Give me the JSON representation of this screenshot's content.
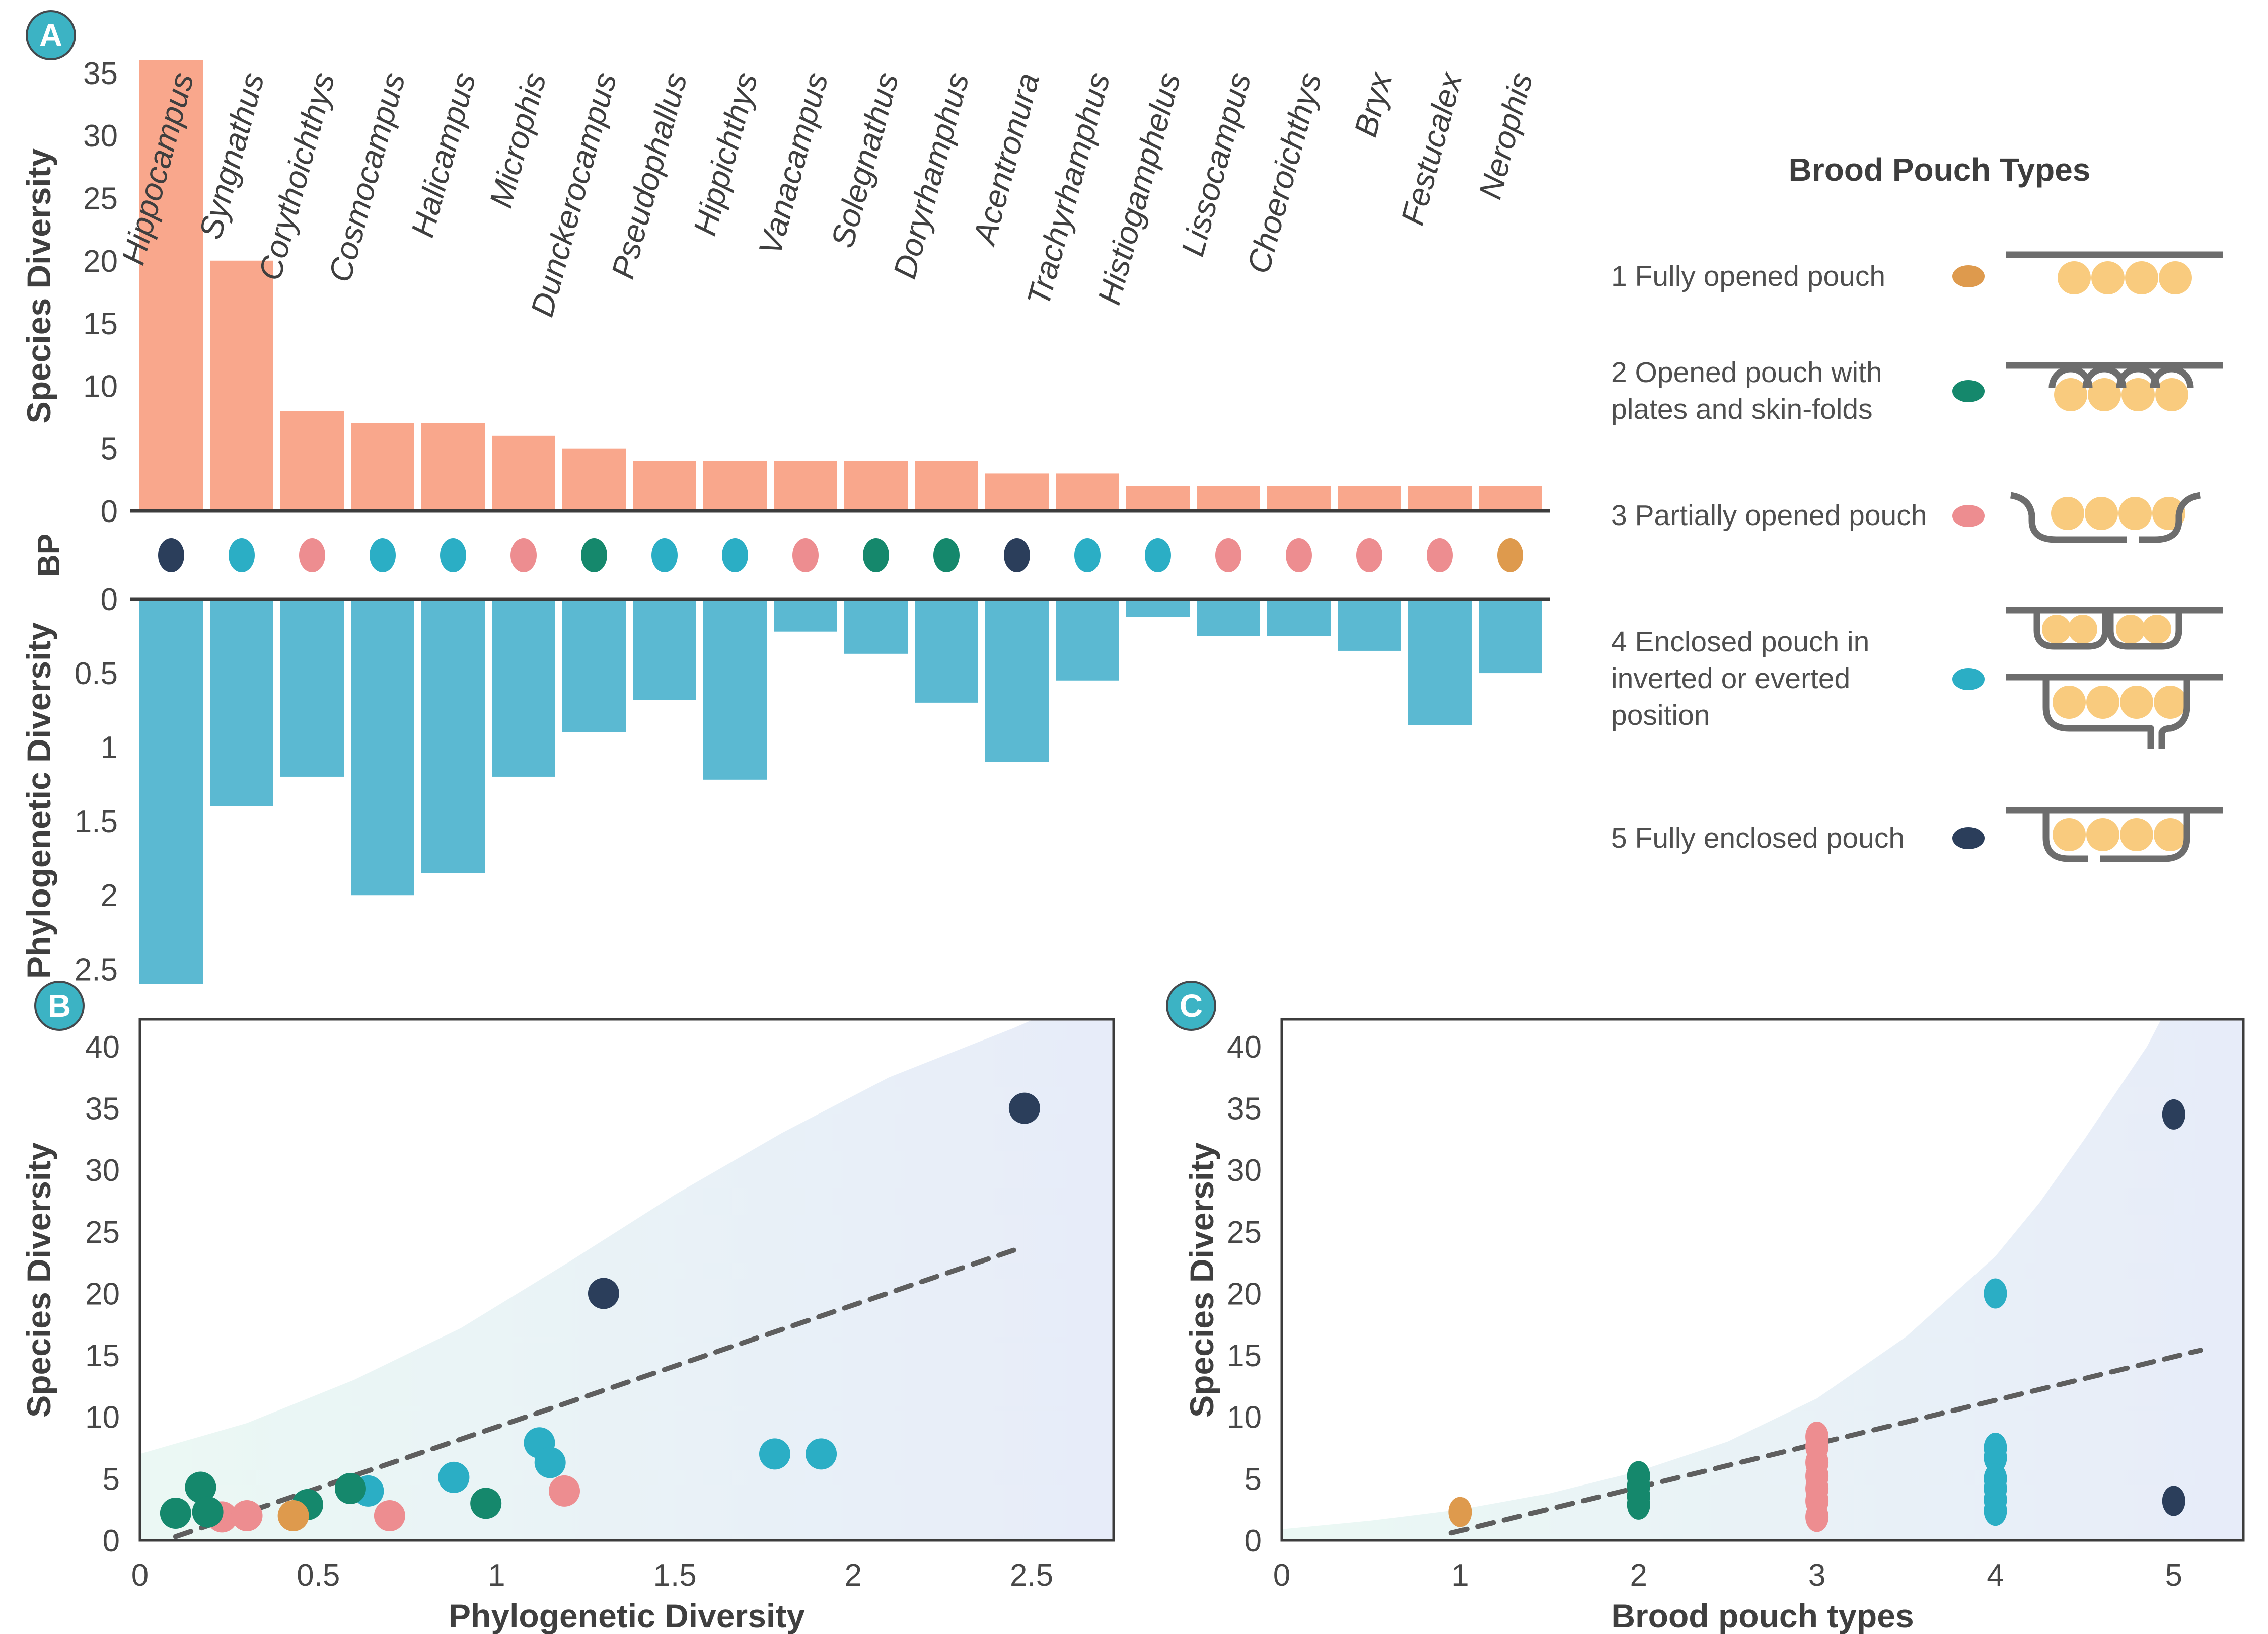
{
  "palette": {
    "bar_top": "#F9A78C",
    "bar_bottom": "#5BB9D2",
    "axis_line": "#3C3C3C",
    "text": "#474747",
    "genus_text": "#3F3F3F",
    "badge_fill": "#3CB3C4",
    "badge_stroke": "#44494D",
    "badge_text": "#FFFFFF",
    "trend": "#5E5E5E",
    "band_left": "#EBF8F4",
    "band_right": "#E7ECF9",
    "egg": "#F9CB7E",
    "icon_gray": "#6D6D6D",
    "bp_colors": {
      "1": "#DE9A4D",
      "2": "#15886C",
      "3": "#ED8D90",
      "4": "#2BAEC5",
      "5": "#2B3E5B"
    }
  },
  "legend": {
    "title": "Brood Pouch Types",
    "items": [
      {
        "bp": 1,
        "label": "1 Fully opened pouch"
      },
      {
        "bp": 2,
        "label": "2 Opened pouch with plates and skin-folds"
      },
      {
        "bp": 3,
        "label": "3 Partially opened pouch"
      },
      {
        "bp": 4,
        "label": "4 Enclosed pouch in inverted or everted position"
      },
      {
        "bp": 5,
        "label": "5 Fully enclosed pouch"
      }
    ]
  },
  "chart_data": [
    {
      "id": "A",
      "type": "bar",
      "badge": "A",
      "ylabel_top": "Species Diversity",
      "ylabel_bottom": "Phylogenetic Diversity",
      "row_label": "BP",
      "yticks_top": [
        0,
        5,
        10,
        15,
        20,
        25,
        30,
        35
      ],
      "ylim_top": [
        0,
        36
      ],
      "yticks_bottom": [
        0,
        0.5,
        1,
        1.5,
        2,
        2.5
      ],
      "ylim_bottom": [
        0,
        2.72
      ],
      "categories": [
        "Hippocampus",
        "Syngnathus",
        "Corythoichthys",
        "Cosmocampus",
        "Halicampus",
        "Microphis",
        "Dunckerocampus",
        "Pseudophallus",
        "Hippichthys",
        "Vanacampus",
        "Solegnathus",
        "Doryrhamphus",
        "Acentronura",
        "Trachyrhamphus",
        "Histiogamphelus",
        "Lissocampus",
        "Choeroichthys",
        "Bryx",
        "Festucalex",
        "Nerophis"
      ],
      "species_diversity": [
        36,
        20,
        8,
        7,
        7,
        6,
        5,
        4,
        4,
        4,
        4,
        4,
        3,
        3,
        2,
        2,
        2,
        2,
        2,
        2
      ],
      "phylogenetic_diversity": [
        2.6,
        1.4,
        1.2,
        2.0,
        1.85,
        1.2,
        0.9,
        0.68,
        1.22,
        0.22,
        0.37,
        0.7,
        1.1,
        0.55,
        0.12,
        0.25,
        0.25,
        0.35,
        0.85,
        0.5
      ],
      "brood_pouch_type": [
        5,
        4,
        3,
        4,
        4,
        3,
        2,
        4,
        4,
        3,
        2,
        2,
        5,
        4,
        4,
        3,
        3,
        3,
        3,
        1
      ]
    },
    {
      "id": "B",
      "type": "scatter",
      "badge": "B",
      "xlabel": "Phylogenetic Diversity",
      "ylabel": "Species Diversity",
      "xticks": [
        0,
        0.5,
        1,
        1.5,
        2,
        2.5
      ],
      "xlim": [
        0,
        2.73
      ],
      "yticks": [
        0,
        5,
        10,
        15,
        20,
        25,
        30,
        35,
        40
      ],
      "ylim": [
        0,
        42.2
      ],
      "trend": {
        "x1": 0.1,
        "y1": 0.3,
        "x2": 2.45,
        "y2": 23.5
      },
      "band_top": [
        [
          0,
          7
        ],
        [
          0.3,
          9.5
        ],
        [
          0.6,
          13
        ],
        [
          0.9,
          17.2
        ],
        [
          1.2,
          22.5
        ],
        [
          1.5,
          28
        ],
        [
          1.8,
          33
        ],
        [
          2.1,
          37.5
        ],
        [
          2.45,
          41.5
        ],
        [
          2.73,
          45
        ]
      ],
      "points": [
        {
          "x": 0.64,
          "y": 4.0,
          "bp": 4
        },
        {
          "x": 0.88,
          "y": 5.1,
          "bp": 4
        },
        {
          "x": 1.12,
          "y": 7.9,
          "bp": 4
        },
        {
          "x": 1.15,
          "y": 6.3,
          "bp": 4
        },
        {
          "x": 1.78,
          "y": 7.0,
          "bp": 4
        },
        {
          "x": 1.91,
          "y": 7.0,
          "bp": 4
        },
        {
          "x": 0.23,
          "y": 1.9,
          "bp": 3
        },
        {
          "x": 0.3,
          "y": 2.0,
          "bp": 3
        },
        {
          "x": 0.7,
          "y": 2.0,
          "bp": 3
        },
        {
          "x": 1.19,
          "y": 4.0,
          "bp": 3
        },
        {
          "x": 0.1,
          "y": 2.2,
          "bp": 2
        },
        {
          "x": 0.17,
          "y": 4.3,
          "bp": 2
        },
        {
          "x": 0.19,
          "y": 2.3,
          "bp": 2
        },
        {
          "x": 0.47,
          "y": 2.9,
          "bp": 2
        },
        {
          "x": 0.59,
          "y": 4.2,
          "bp": 2
        },
        {
          "x": 0.97,
          "y": 3.0,
          "bp": 2
        },
        {
          "x": 0.43,
          "y": 2.0,
          "bp": 1
        },
        {
          "x": 1.3,
          "y": 20,
          "bp": 5
        },
        {
          "x": 2.48,
          "y": 35,
          "bp": 5
        }
      ]
    },
    {
      "id": "C",
      "type": "scatter",
      "badge": "C",
      "xlabel": "Brood pouch types",
      "ylabel": "Species Diversity",
      "xticks": [
        0,
        1,
        2,
        3,
        4,
        5
      ],
      "xlim": [
        0,
        5.39
      ],
      "yticks": [
        0,
        5,
        10,
        15,
        20,
        25,
        30,
        35,
        40
      ],
      "ylim": [
        0,
        42.2
      ],
      "trend": {
        "x1": 0.95,
        "y1": 0.6,
        "x2": 5.15,
        "y2": 15.4
      },
      "band_top": [
        [
          0,
          0.9
        ],
        [
          0.5,
          1.6
        ],
        [
          1,
          2.5
        ],
        [
          1.5,
          3.8
        ],
        [
          2,
          5.6
        ],
        [
          2.5,
          8
        ],
        [
          3,
          11.5
        ],
        [
          3.5,
          16.5
        ],
        [
          4,
          23
        ],
        [
          4.25,
          27.4
        ],
        [
          4.5,
          32.5
        ],
        [
          4.85,
          40
        ],
        [
          5.39,
          55
        ]
      ],
      "points": [
        {
          "x": 1,
          "y": 2.3,
          "bp": 1
        },
        {
          "x": 2,
          "y": 5.2,
          "bp": 2
        },
        {
          "x": 2,
          "y": 4.4,
          "bp": 2
        },
        {
          "x": 2,
          "y": 3.6,
          "bp": 2
        },
        {
          "x": 2,
          "y": 2.9,
          "bp": 2
        },
        {
          "x": 3,
          "y": 8.4,
          "bp": 3
        },
        {
          "x": 3,
          "y": 7.6,
          "bp": 3
        },
        {
          "x": 3,
          "y": 6.3,
          "bp": 3
        },
        {
          "x": 3,
          "y": 5.2,
          "bp": 3
        },
        {
          "x": 3,
          "y": 4.2,
          "bp": 3
        },
        {
          "x": 3,
          "y": 3.2,
          "bp": 3
        },
        {
          "x": 3,
          "y": 1.9,
          "bp": 3
        },
        {
          "x": 4,
          "y": 20,
          "bp": 4
        },
        {
          "x": 4,
          "y": 7.5,
          "bp": 4
        },
        {
          "x": 4,
          "y": 6.7,
          "bp": 4
        },
        {
          "x": 4,
          "y": 5.0,
          "bp": 4
        },
        {
          "x": 4,
          "y": 4.2,
          "bp": 4
        },
        {
          "x": 4,
          "y": 3.3,
          "bp": 4
        },
        {
          "x": 4,
          "y": 2.4,
          "bp": 4
        },
        {
          "x": 5,
          "y": 34.5,
          "bp": 5
        },
        {
          "x": 5,
          "y": 3.2,
          "bp": 5
        }
      ]
    }
  ]
}
